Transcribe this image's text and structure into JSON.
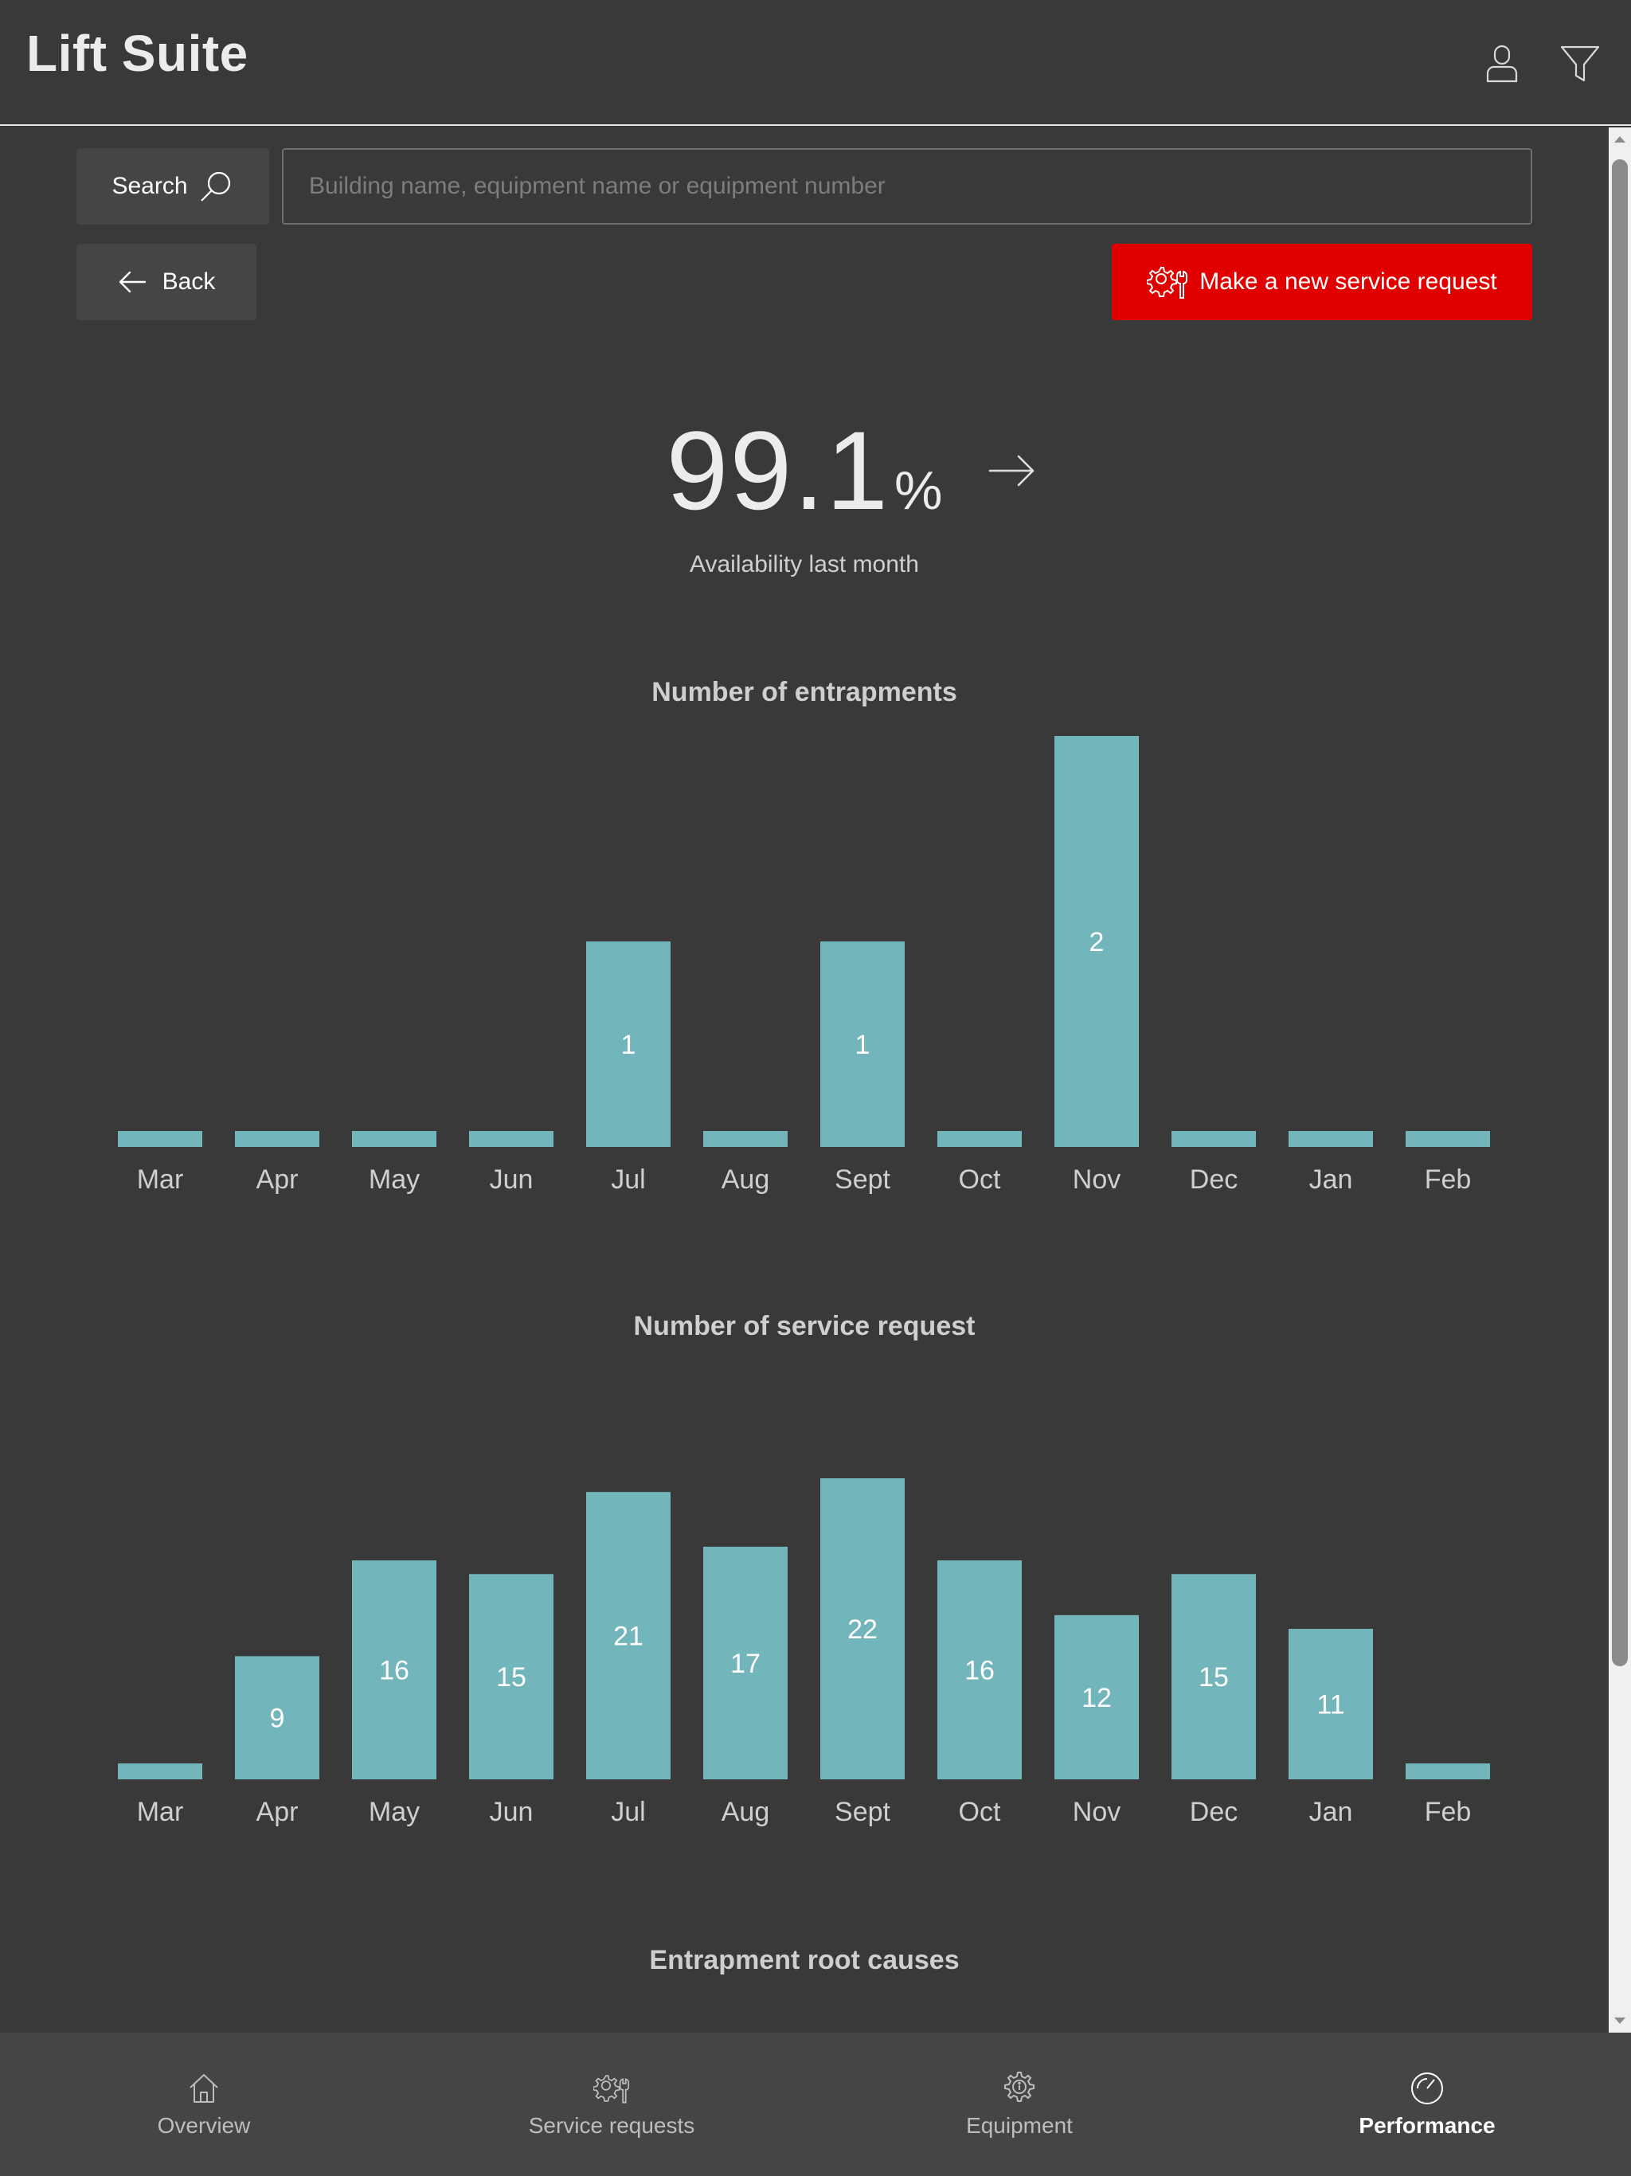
{
  "app": {
    "title": "Lift Suite"
  },
  "header": {
    "user_icon": "user-icon",
    "filter_icon": "filter-icon"
  },
  "search": {
    "button_label": "Search",
    "placeholder": "Building name, equipment name or equipment number",
    "value": ""
  },
  "toolbar": {
    "back_label": "Back",
    "service_request_label": "Make a new service request"
  },
  "kpi": {
    "value": "99.1",
    "unit": "%",
    "label": "Availability last month"
  },
  "chart_data": [
    {
      "type": "bar",
      "title": "Number of entrapments",
      "categories": [
        "Mar",
        "Apr",
        "May",
        "Jun",
        "Jul",
        "Aug",
        "Sept",
        "Oct",
        "Nov",
        "Dec",
        "Jan",
        "Feb"
      ],
      "values": [
        0,
        0,
        0,
        0,
        1,
        0,
        1,
        0,
        2,
        0,
        0,
        0
      ],
      "data_labels": [
        "",
        "",
        "",
        "",
        "1",
        "",
        "1",
        "",
        "2",
        "",
        "",
        ""
      ],
      "ylim": [
        0,
        2
      ],
      "color": "#72b5ba",
      "grid": false
    },
    {
      "type": "bar",
      "title": "Number of service request",
      "categories": [
        "Mar",
        "Apr",
        "May",
        "Jun",
        "Jul",
        "Aug",
        "Sept",
        "Oct",
        "Nov",
        "Dec",
        "Jan",
        "Feb"
      ],
      "values": [
        0,
        9,
        16,
        15,
        21,
        17,
        22,
        16,
        12,
        15,
        11,
        0
      ],
      "data_labels": [
        "",
        "9",
        "16",
        "15",
        "21",
        "17",
        "22",
        "16",
        "12",
        "15",
        "11",
        ""
      ],
      "ylim": [
        0,
        22
      ],
      "color": "#72b5ba",
      "grid": false
    }
  ],
  "section": {
    "root_causes_title": "Entrapment root causes"
  },
  "nav": {
    "items": [
      {
        "label": "Overview",
        "icon": "home-icon"
      },
      {
        "label": "Service requests",
        "icon": "service-request-icon"
      },
      {
        "label": "Equipment",
        "icon": "equipment-icon"
      },
      {
        "label": "Performance",
        "icon": "gauge-icon"
      }
    ],
    "active": "Performance"
  }
}
